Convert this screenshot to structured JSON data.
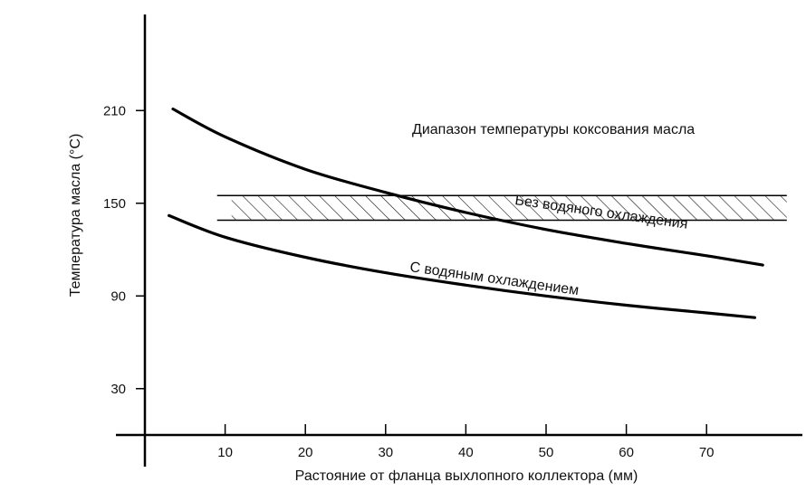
{
  "chart_data": {
    "type": "line",
    "xlabel": "Растояние от фланца выхлопного коллектора (мм)",
    "ylabel": "Температура масла (°C)",
    "xlim": [
      -0.3,
      80
    ],
    "ylim": [
      0,
      240
    ],
    "x_ticks": [
      10,
      20,
      30,
      40,
      50,
      60,
      70
    ],
    "y_ticks": [
      30,
      90,
      150,
      210
    ],
    "grid": false,
    "band": {
      "label": "Диапазон температуры коксования масла",
      "y_low": 139,
      "y_high": 155,
      "x_start": 9,
      "x_end": 80,
      "pattern": "hatched"
    },
    "series": [
      {
        "name": "Без водяного охлаждения",
        "x": [
          3.5,
          10,
          20,
          30,
          40,
          50,
          60,
          70,
          77
        ],
        "y": [
          211,
          193,
          172,
          157,
          144,
          133,
          124,
          116,
          110
        ]
      },
      {
        "name": "С водяным охлаждением",
        "x": [
          3,
          10,
          20,
          30,
          40,
          50,
          60,
          70,
          76
        ],
        "y": [
          142,
          128,
          115,
          105,
          97,
          90,
          84,
          79,
          76
        ]
      }
    ]
  }
}
